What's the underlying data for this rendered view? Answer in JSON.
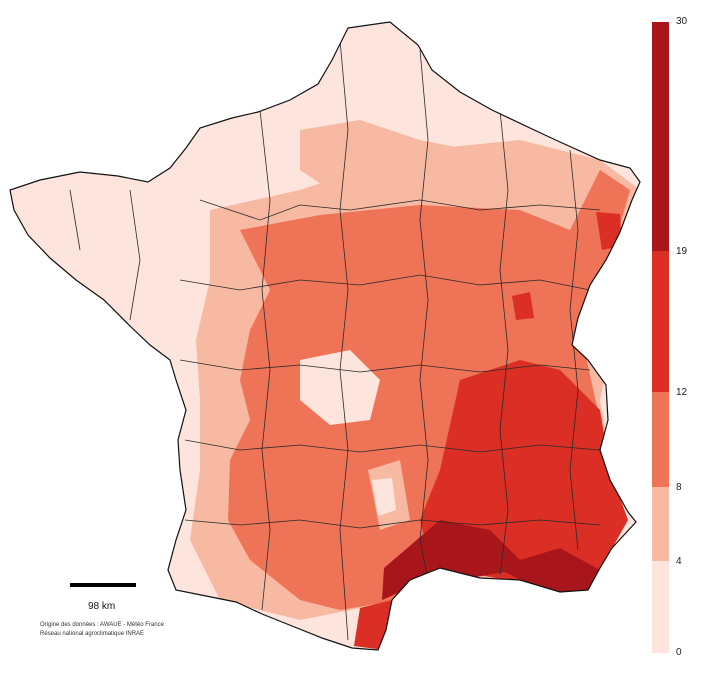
{
  "map": {
    "region": "France",
    "legend": {
      "ticks": [
        "30",
        "19",
        "12",
        "8",
        "4",
        "0"
      ],
      "classes": [
        {
          "range": [
            0,
            4
          ],
          "color": "#fde4dc"
        },
        {
          "range": [
            4,
            8
          ],
          "color": "#f8b9a3"
        },
        {
          "range": [
            8,
            12
          ],
          "color": "#ef7356"
        },
        {
          "range": [
            12,
            19
          ],
          "color": "#db2e25"
        },
        {
          "range": [
            19,
            30
          ],
          "color": "#a8151b"
        }
      ]
    },
    "scale": {
      "label": "98 km"
    },
    "source": {
      "line1": "Origine des données : AWAUE - Météo France",
      "line2": "Réseau national agroclimatique INRAE"
    }
  }
}
